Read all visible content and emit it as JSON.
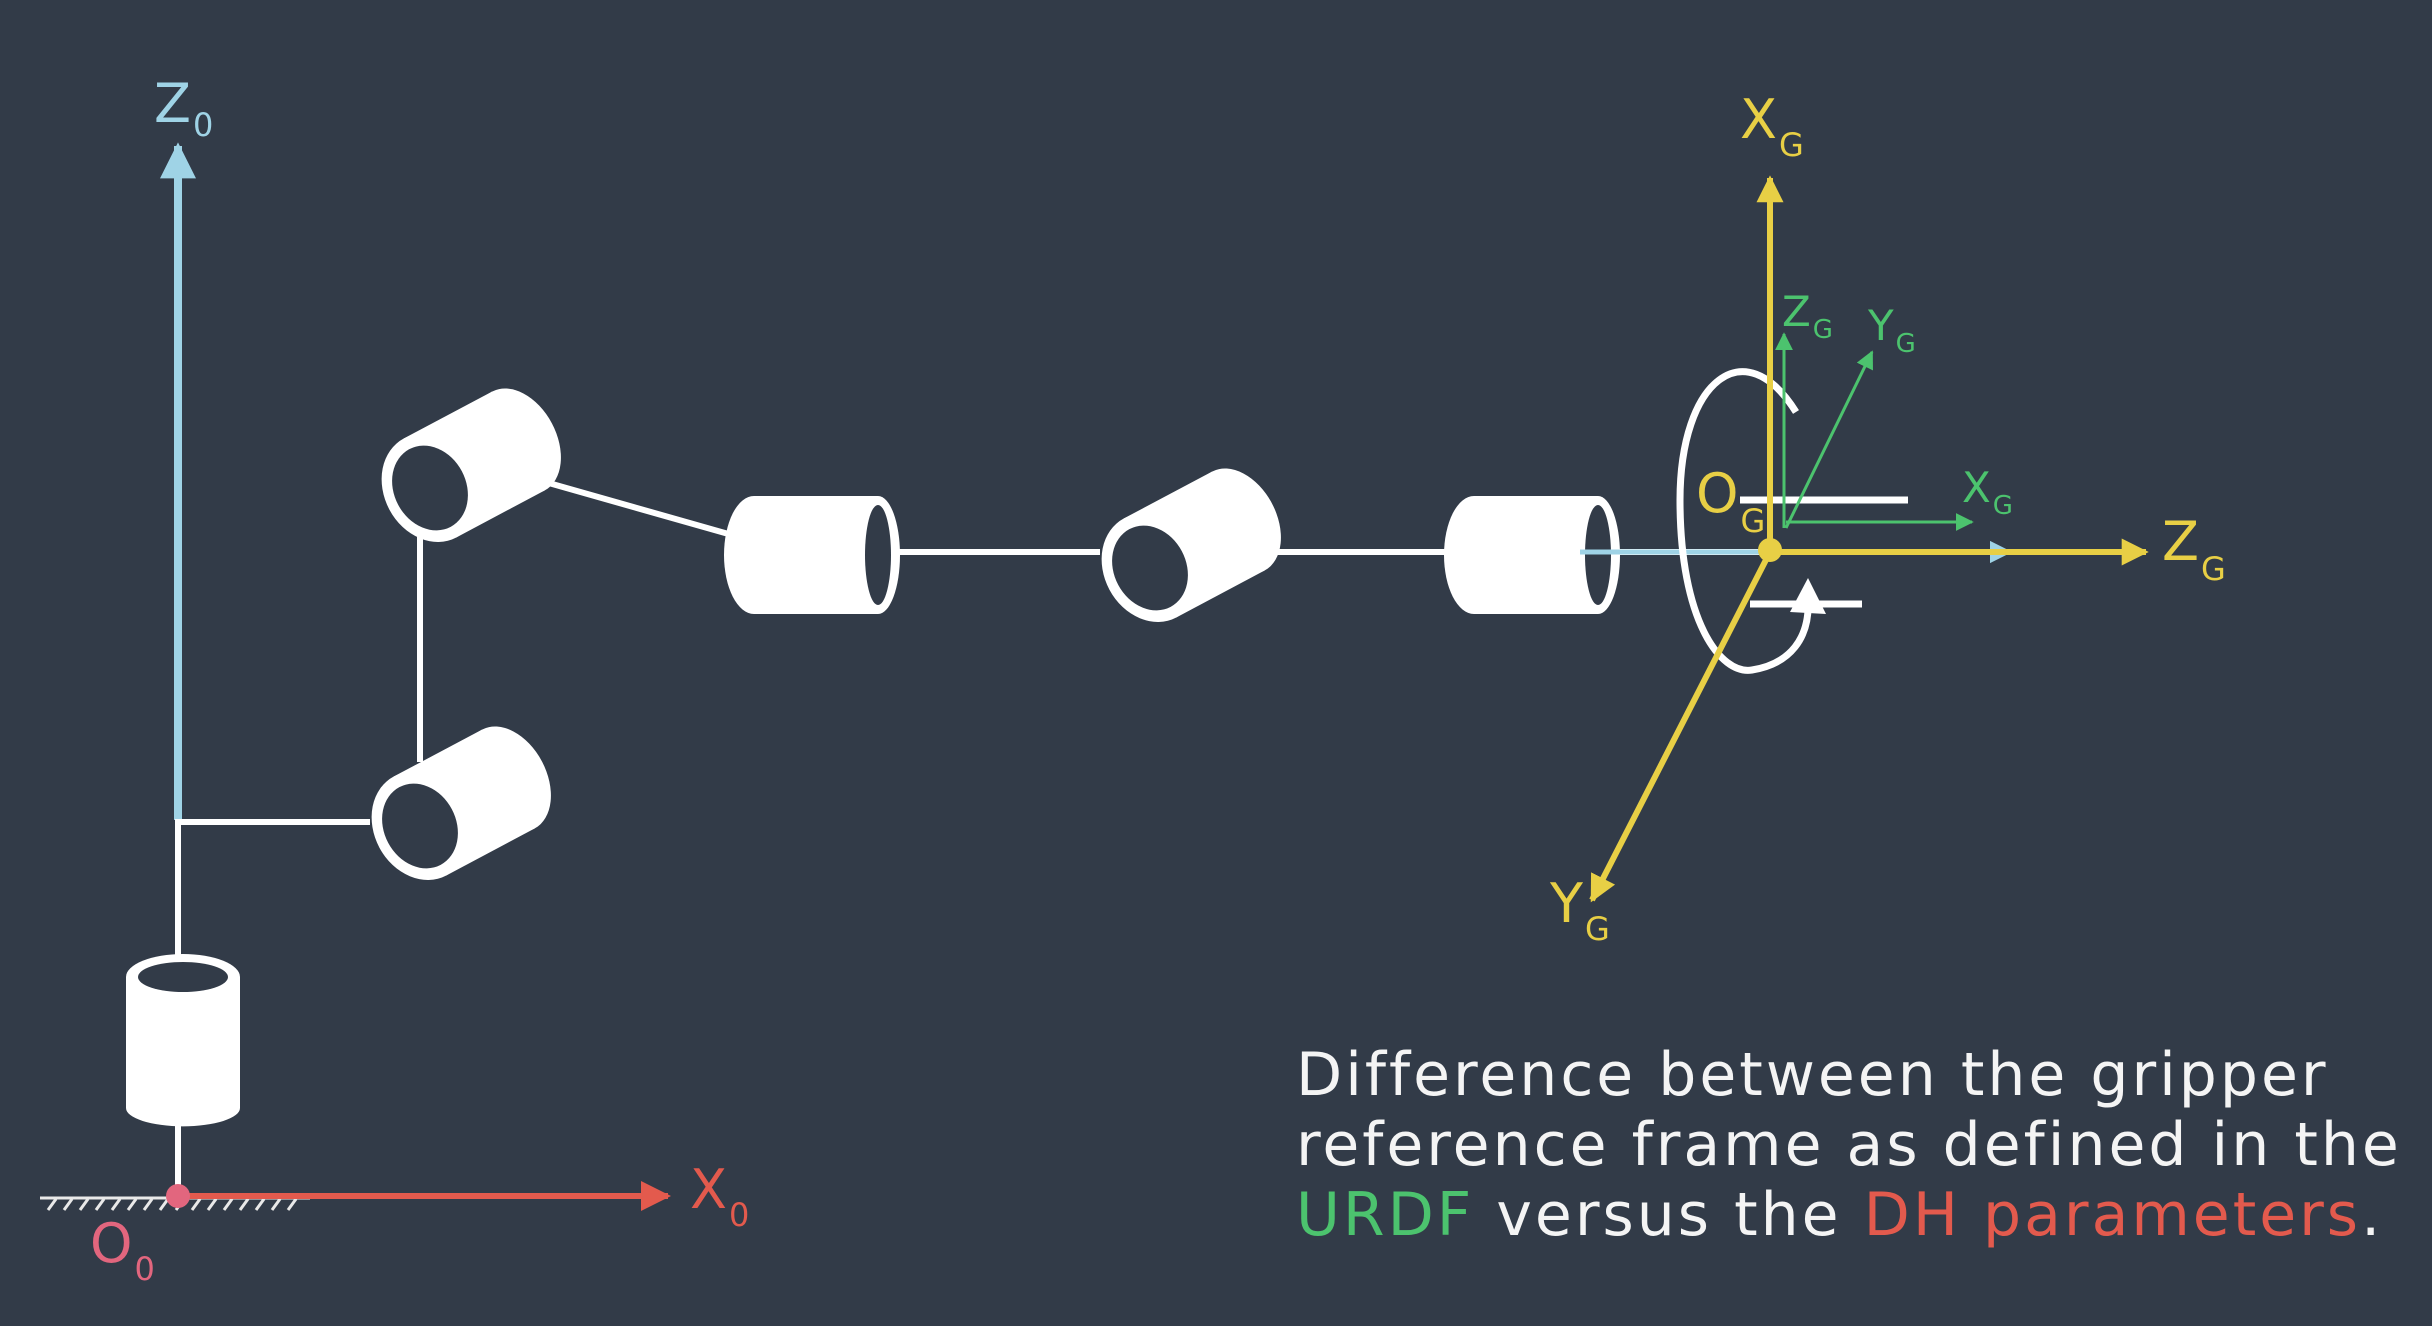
{
  "colors": {
    "background": "#323b48",
    "base_z_axis": "#9fd3e6",
    "base_x_axis": "#e35a4d",
    "base_origin": "#e2667e",
    "dh_frame": "#e8cf45",
    "urdf_frame": "#4cc36e",
    "robot": "#ffffff",
    "caption": "#f4f4f4",
    "caption_urdf": "#4cc36e",
    "caption_dh": "#e35a4d"
  },
  "labels": {
    "z0": {
      "main": "Z",
      "sub": "0"
    },
    "x0": {
      "main": "X",
      "sub": "0"
    },
    "o0": {
      "main": "O",
      "sub": "0"
    },
    "dh_xg": {
      "main": "X",
      "sub": "G"
    },
    "dh_zg": {
      "main": "Z",
      "sub": "G"
    },
    "dh_yg": {
      "main": "Y",
      "sub": "G"
    },
    "dh_og": {
      "main": "O",
      "sub": "G"
    },
    "urdf_zg": {
      "main": "Z",
      "sub": "G"
    },
    "urdf_yg": {
      "main": "Y",
      "sub": "G"
    },
    "urdf_xg": {
      "main": "X",
      "sub": "G"
    }
  },
  "caption": {
    "line1": "Difference between the gripper",
    "line2": "reference frame as defined in the",
    "urdf": "URDF",
    "mid": " versus the ",
    "dh": "DH parameters",
    "end": "."
  }
}
